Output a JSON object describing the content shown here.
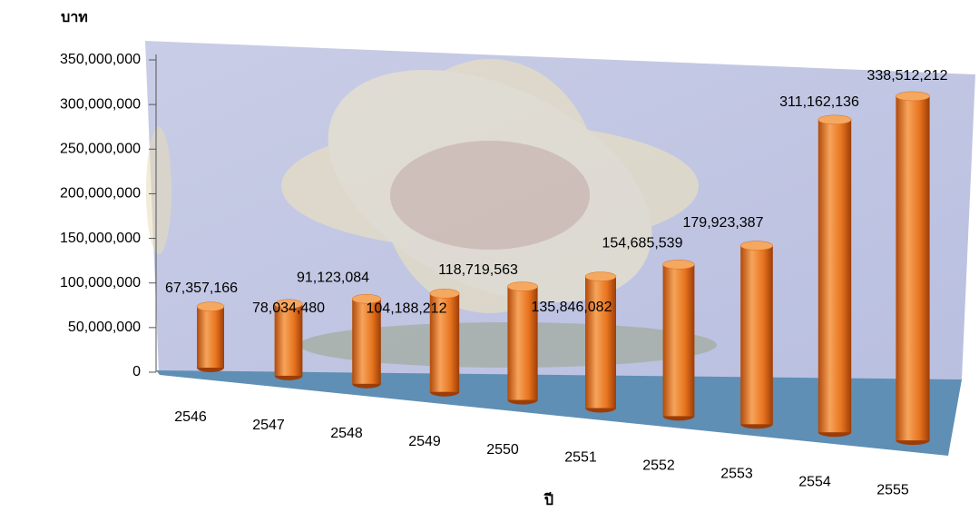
{
  "chart_data": {
    "type": "bar3d",
    "y_label": "บาท",
    "x_label": "ปี",
    "categories": [
      "2546",
      "2547",
      "2548",
      "2549",
      "2550",
      "2551",
      "2552",
      "2553",
      "2554",
      "2555"
    ],
    "values": [
      67357166,
      78034480,
      91123084,
      104188212,
      118719563,
      135846082,
      154685539,
      179923387,
      311162136,
      338512212
    ],
    "value_labels": [
      "67,357,166",
      "78,034,480",
      "91,123,084",
      "104,188,212",
      "118,719,563",
      "135,846,082",
      "154,685,539",
      "179,923,387",
      "311,162,136",
      "338,512,212"
    ],
    "color": "#e8741e",
    "ylim": [
      0,
      350000000
    ],
    "yticks": [
      0,
      {
        "value": 50000000,
        "label": "50,000,000"
      },
      {
        "value": 100000000,
        "label": "100,000,000"
      },
      {
        "value": 150000000,
        "label": "150,000,000"
      },
      {
        "value": 200000000,
        "label": "200,000,000"
      },
      {
        "value": 250000000,
        "label": "250,000,000"
      },
      {
        "value": 300000000,
        "label": "300,000,000"
      },
      {
        "value": 350000000,
        "label": "350,000,000"
      }
    ]
  }
}
